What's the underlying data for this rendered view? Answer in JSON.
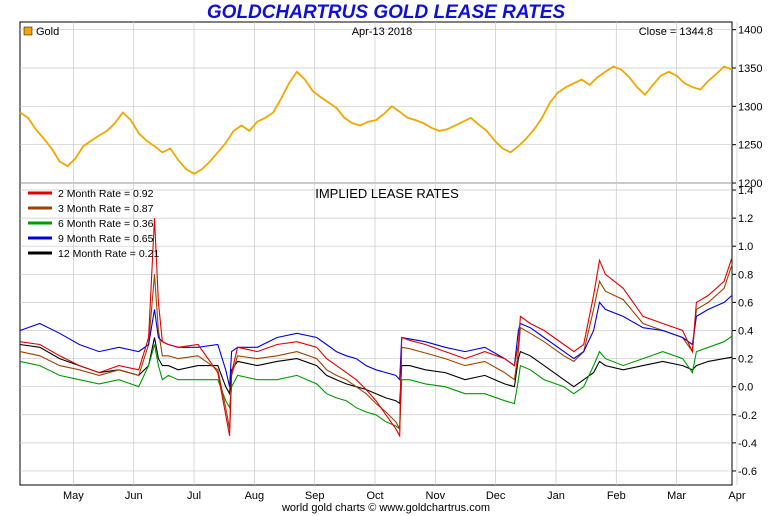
{
  "title": "GOLDCHARTRUS GOLD LEASE RATES",
  "footer": "world gold charts © www.goldchartrus.com",
  "colors": {
    "title": "#1010d0",
    "gold": "#f0a800",
    "rate_2m": "#e00000",
    "rate_3m": "#994400",
    "rate_6m": "#009900",
    "rate_9m": "#0000dd",
    "rate_12m": "#000000"
  },
  "chart_data": [
    {
      "type": "line",
      "legend_label": "Gold",
      "header_date": "Apr-13 2018",
      "header_close": "Close = 1344.8",
      "ylim": [
        1200,
        1410
      ],
      "y_ticks": [
        1200,
        1250,
        1300,
        1350,
        1400
      ],
      "x_tick_labels": [
        "May",
        "Jun",
        "Jul",
        "Aug",
        "Sep",
        "Oct",
        "Nov",
        "Dec",
        "Jan",
        "Feb",
        "Mar",
        "Apr"
      ],
      "x": [
        0,
        4,
        8,
        12,
        16,
        20,
        24,
        28,
        32,
        36,
        40,
        44,
        48,
        52,
        56,
        60,
        64,
        68,
        72,
        76,
        80,
        84,
        88,
        92,
        96,
        100,
        104,
        108,
        112,
        116,
        120,
        124,
        128,
        132,
        136,
        140,
        144,
        148,
        152,
        156,
        160,
        164,
        168,
        172,
        176,
        180,
        184,
        188,
        192,
        196,
        200,
        204,
        208,
        212,
        216,
        220,
        224,
        228,
        232,
        236,
        240,
        244,
        248,
        252,
        256,
        260,
        264,
        268,
        272,
        276,
        280,
        284,
        288,
        292,
        296,
        300,
        304,
        308,
        312,
        316,
        320,
        324,
        328,
        332,
        336,
        340,
        344,
        348,
        352,
        356,
        360
      ],
      "values": [
        1292,
        1285,
        1270,
        1258,
        1245,
        1228,
        1222,
        1232,
        1248,
        1255,
        1262,
        1268,
        1278,
        1292,
        1282,
        1265,
        1255,
        1248,
        1240,
        1245,
        1230,
        1218,
        1212,
        1218,
        1228,
        1240,
        1252,
        1268,
        1275,
        1268,
        1280,
        1285,
        1292,
        1310,
        1330,
        1345,
        1335,
        1320,
        1312,
        1305,
        1298,
        1285,
        1278,
        1275,
        1280,
        1282,
        1290,
        1300,
        1293,
        1285,
        1282,
        1278,
        1272,
        1268,
        1270,
        1275,
        1280,
        1285,
        1276,
        1268,
        1255,
        1245,
        1240,
        1248,
        1258,
        1270,
        1285,
        1305,
        1318,
        1325,
        1330,
        1335,
        1328,
        1338,
        1345,
        1352,
        1348,
        1338,
        1325,
        1315,
        1328,
        1340,
        1345,
        1340,
        1330,
        1325,
        1322,
        1333,
        1342,
        1352,
        1348
      ]
    },
    {
      "type": "line",
      "title": "IMPLIED LEASE RATES",
      "ylim": [
        -0.7,
        1.45
      ],
      "y_ticks": [
        -0.6,
        -0.4,
        -0.2,
        0.0,
        0.2,
        0.4,
        0.6,
        0.8,
        1.0,
        1.2,
        1.4
      ],
      "x_tick_labels": [
        "May",
        "Jun",
        "Jul",
        "Aug",
        "Sep",
        "Oct",
        "Nov",
        "Dec",
        "Jan",
        "Feb",
        "Mar",
        "Apr"
      ],
      "x": [
        0,
        10,
        20,
        30,
        40,
        50,
        60,
        65,
        68,
        70,
        72,
        75,
        80,
        90,
        100,
        104,
        106,
        107,
        110,
        120,
        130,
        140,
        150,
        155,
        160,
        165,
        170,
        175,
        180,
        185,
        190,
        192,
        193,
        197,
        205,
        215,
        225,
        235,
        245,
        250,
        252,
        253,
        258,
        265,
        275,
        280,
        285,
        290,
        293,
        296,
        305,
        315,
        325,
        335,
        340,
        342,
        348,
        356,
        360
      ],
      "series": [
        {
          "name": "2 Month Rate",
          "legend": "2 Month Rate  = 0.92",
          "values": [
            0.32,
            0.3,
            0.22,
            0.15,
            0.1,
            0.15,
            0.12,
            0.35,
            1.2,
            0.6,
            0.32,
            0.3,
            0.28,
            0.3,
            0.1,
            -0.2,
            -0.35,
            0.1,
            0.28,
            0.25,
            0.3,
            0.32,
            0.28,
            0.2,
            0.15,
            0.1,
            0.05,
            -0.02,
            -0.1,
            -0.2,
            -0.3,
            -0.35,
            0.35,
            0.33,
            0.3,
            0.25,
            0.2,
            0.25,
            0.2,
            0.15,
            0.3,
            0.5,
            0.45,
            0.4,
            0.3,
            0.25,
            0.3,
            0.65,
            0.9,
            0.8,
            0.7,
            0.5,
            0.45,
            0.4,
            0.25,
            0.6,
            0.65,
            0.75,
            0.92
          ]
        },
        {
          "name": "3 Month Rate",
          "legend": "3 Month Rate  = 0.87",
          "values": [
            0.25,
            0.22,
            0.15,
            0.12,
            0.08,
            0.12,
            0.08,
            0.3,
            0.8,
            0.4,
            0.22,
            0.22,
            0.2,
            0.22,
            0.12,
            -0.15,
            -0.3,
            0.08,
            0.22,
            0.2,
            0.22,
            0.25,
            0.2,
            0.12,
            0.08,
            0.05,
            0.0,
            -0.05,
            -0.12,
            -0.18,
            -0.25,
            -0.3,
            0.28,
            0.27,
            0.24,
            0.2,
            0.15,
            0.18,
            0.1,
            0.05,
            0.25,
            0.42,
            0.38,
            0.32,
            0.22,
            0.18,
            0.25,
            0.55,
            0.75,
            0.68,
            0.62,
            0.45,
            0.4,
            0.35,
            0.25,
            0.55,
            0.6,
            0.7,
            0.87
          ]
        },
        {
          "name": "6 Month Rate",
          "legend": "6 Month Rate  = 0.36",
          "values": [
            0.18,
            0.15,
            0.08,
            0.05,
            0.02,
            0.05,
            0.0,
            0.15,
            0.3,
            0.15,
            0.05,
            0.08,
            0.05,
            0.05,
            0.05,
            -0.1,
            -0.15,
            0.0,
            0.08,
            0.05,
            0.05,
            0.08,
            0.02,
            -0.05,
            -0.08,
            -0.1,
            -0.15,
            -0.18,
            -0.2,
            -0.25,
            -0.28,
            -0.3,
            0.05,
            0.05,
            0.02,
            0.0,
            -0.05,
            -0.05,
            -0.1,
            -0.12,
            0.05,
            0.15,
            0.12,
            0.05,
            0.0,
            -0.05,
            0.0,
            0.15,
            0.25,
            0.2,
            0.15,
            0.2,
            0.25,
            0.2,
            0.1,
            0.25,
            0.28,
            0.32,
            0.36
          ]
        },
        {
          "name": "9 Month Rate",
          "legend": "9 Month Rate  = 0.65",
          "values": [
            0.4,
            0.45,
            0.38,
            0.3,
            0.25,
            0.28,
            0.25,
            0.3,
            0.55,
            0.35,
            0.32,
            0.3,
            0.28,
            0.28,
            0.3,
            0.12,
            0.0,
            0.25,
            0.28,
            0.28,
            0.35,
            0.38,
            0.35,
            0.3,
            0.25,
            0.22,
            0.2,
            0.15,
            0.12,
            0.1,
            0.08,
            0.05,
            0.35,
            0.34,
            0.32,
            0.28,
            0.25,
            0.28,
            0.2,
            0.15,
            0.4,
            0.45,
            0.42,
            0.35,
            0.25,
            0.2,
            0.25,
            0.4,
            0.6,
            0.55,
            0.5,
            0.42,
            0.4,
            0.35,
            0.3,
            0.5,
            0.55,
            0.6,
            0.65
          ]
        },
        {
          "name": "12 Month Rate",
          "legend": "12 Month Rate  = 0.21",
          "values": [
            0.3,
            0.28,
            0.2,
            0.15,
            0.1,
            0.12,
            0.08,
            0.15,
            0.35,
            0.2,
            0.15,
            0.15,
            0.12,
            0.15,
            0.15,
            0.0,
            -0.05,
            0.12,
            0.18,
            0.15,
            0.18,
            0.2,
            0.15,
            0.08,
            0.05,
            0.02,
            0.0,
            -0.02,
            -0.05,
            -0.08,
            -0.1,
            -0.12,
            0.15,
            0.15,
            0.12,
            0.1,
            0.05,
            0.08,
            0.02,
            0.0,
            0.2,
            0.25,
            0.22,
            0.15,
            0.05,
            0.0,
            0.05,
            0.1,
            0.18,
            0.15,
            0.12,
            0.15,
            0.18,
            0.15,
            0.12,
            0.15,
            0.18,
            0.2,
            0.21
          ]
        }
      ]
    }
  ]
}
